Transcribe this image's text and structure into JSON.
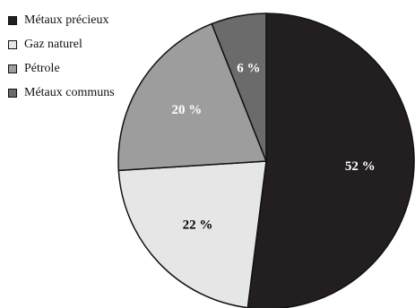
{
  "chart_data": {
    "type": "pie",
    "categories": [
      "Métaux précieux",
      "Gaz naturel",
      "Pétrole",
      "Métaux communs"
    ],
    "values": [
      52,
      22,
      20,
      6
    ],
    "labels": [
      "52 %",
      "22 %",
      "20 %",
      "6 %"
    ],
    "colors": [
      "#231f20",
      "#e6e6e6",
      "#9d9d9d",
      "#6b6b6b"
    ],
    "label_colors": [
      "#ffffff",
      "#000000",
      "#ffffff",
      "#ffffff"
    ],
    "legend_position": "top-left"
  }
}
